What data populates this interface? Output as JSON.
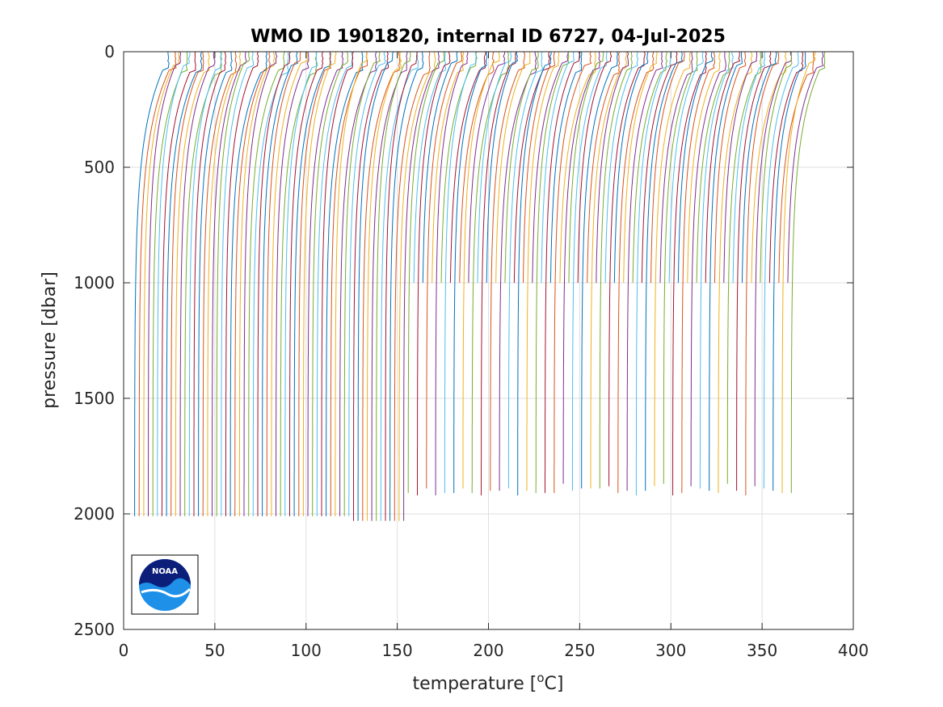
{
  "chart_data": {
    "type": "line",
    "title": "WMO ID 1901820, internal ID 6727, 04-Jul-2025",
    "xlabel_main": "temperature [",
    "xlabel_sup": "o",
    "xlabel_tail": "C]",
    "ylabel": "pressure [dbar]",
    "xlim": [
      0,
      400
    ],
    "ylim": [
      0,
      2500
    ],
    "y_reversed": true,
    "x_ticks": [
      "0",
      "50",
      "100",
      "150",
      "200",
      "250",
      "300",
      "350",
      "400"
    ],
    "y_ticks": [
      "0",
      "500",
      "1000",
      "1500",
      "2000",
      "2500"
    ],
    "grid": true,
    "series_description_offsets": {
      "profile_count": 145,
      "offset_per_profile_degC": 2.5,
      "first_profile_deep_temp": 6,
      "first_profile_surface_temp": 24
    },
    "segments": [
      {
        "from_profile": 0,
        "to_profile": 47,
        "max_pressure": 2010
      },
      {
        "from_profile": 48,
        "to_profile": 59,
        "max_pressure": 2030
      },
      {
        "from_profile": 60,
        "to_profile": 144,
        "max_pressure": 1000,
        "sparse_deep_to": 1900
      }
    ],
    "series_colors": [
      "#0072BD",
      "#D95319",
      "#EDB120",
      "#7E2F8E",
      "#77AC30",
      "#4DBEEE",
      "#A2142F"
    ]
  },
  "logo": {
    "name": "noaa-logo",
    "text": "NOAA",
    "colors": {
      "dark": "#0b1f7a",
      "light": "#1e90e8"
    }
  }
}
